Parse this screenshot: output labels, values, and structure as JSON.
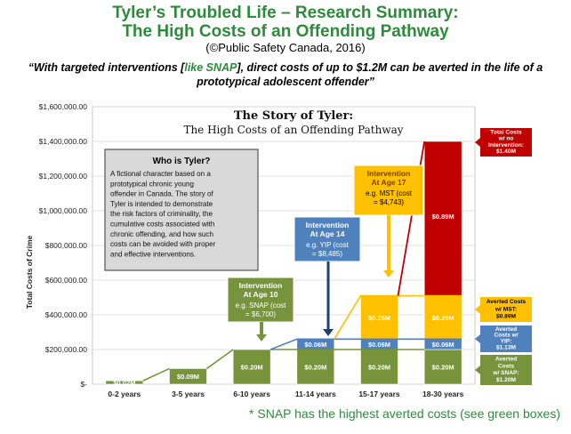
{
  "header": {
    "title_line1": "Tyler’s Troubled Life – Research Summary:",
    "title_line2": "The High Costs of an Offending Pathway",
    "citation": "(©Public Safety Canada, 2016)",
    "quote_pre": "“With targeted interventions [",
    "quote_highlight": "like SNAP",
    "quote_post": "], direct costs of up to $1.2M can be averted in the life of a prototypical adolescent offender”"
  },
  "footnote": "* SNAP has the highest averted costs (see green boxes)",
  "colors": {
    "green": "#77933c",
    "blue": "#4f81bd",
    "yellow": "#ffc000",
    "red": "#c00000",
    "title_green": "#2e8b3a"
  },
  "chart_data": {
    "type": "bar",
    "title": "The Story of Tyler:",
    "subtitle": "The High Costs of an Offending Pathway",
    "ylabel": "Total Costs of Crime",
    "ylim": [
      0,
      1600000
    ],
    "yticks": [
      0,
      200000,
      400000,
      600000,
      800000,
      1000000,
      1200000,
      1400000,
      1600000
    ],
    "ytick_labels": [
      "$-",
      "$200,000.00",
      "$400,000.00",
      "$600,000.00",
      "$800,000.00",
      "$1,000,000.00",
      "$1,200,000.00",
      "$1,400,000.00",
      "$1,600,000.00"
    ],
    "categories": [
      "0-2 years",
      "3-5 years",
      "6-10 years",
      "11-14 years",
      "15-17 years",
      "18-30 years"
    ],
    "series": [
      {
        "name": "SNAP",
        "color": "#77933c",
        "values": [
          20000,
          90000,
          200000,
          200000,
          200000,
          200000
        ],
        "labels": [
          "$0.02M",
          "$0.09M",
          "$0.20M",
          "$0.20M",
          "$0.20M",
          "$0.20M"
        ]
      },
      {
        "name": "YIP",
        "color": "#4f81bd",
        "values": [
          0,
          0,
          0,
          60000,
          60000,
          60000
        ],
        "labels": [
          "",
          "",
          "",
          "$0.06M",
          "$0.06M",
          "$0.06M"
        ]
      },
      {
        "name": "MST",
        "color": "#ffc000",
        "values": [
          0,
          0,
          0,
          0,
          250000,
          250000
        ],
        "labels": [
          "",
          "",
          "",
          "",
          "$0.25M",
          "$0.25M"
        ]
      },
      {
        "name": "No intervention",
        "color": "#c00000",
        "values": [
          0,
          0,
          0,
          0,
          0,
          890000
        ],
        "labels": [
          "",
          "",
          "",
          "",
          "",
          "$0.89M"
        ]
      }
    ],
    "who_box": {
      "title": "Who is Tyler?",
      "lines": [
        "A fictional character based on a",
        "prototypical chronic young",
        "offender in Canada. The story of",
        "Tyler is intended to demonstrate",
        "the risk factors of criminality, the",
        "cumulative costs associated with",
        "chronic offending, and how such",
        "costs can be avoided with proper",
        "and effective interventions."
      ]
    },
    "interventions": [
      {
        "lines": [
          "Intervention",
          "At Age 10"
        ],
        "detail": [
          "e.g. SNAP (cost",
          "= $6,700)"
        ]
      },
      {
        "lines": [
          "Intervention",
          "At Age 14"
        ],
        "detail": [
          "e.g. YIP (cost",
          "= $8,485)"
        ]
      },
      {
        "lines": [
          "Intervention",
          "At Age 17"
        ],
        "detail": [
          "e.g. MST (cost",
          "= $4,743)"
        ]
      }
    ],
    "callouts": [
      {
        "lines": [
          "Total Costs",
          "w/ no",
          "Intervention:",
          "$1.40M"
        ]
      },
      {
        "lines": [
          "Averted Costs",
          "w/ MST:",
          "$0.89M"
        ]
      },
      {
        "lines": [
          "Averted",
          "Costs w/",
          "YIP:",
          "$1.13M"
        ]
      },
      {
        "lines": [
          "Averted",
          "Costs",
          "w/ SNAP:",
          "$1.20M"
        ]
      }
    ]
  }
}
